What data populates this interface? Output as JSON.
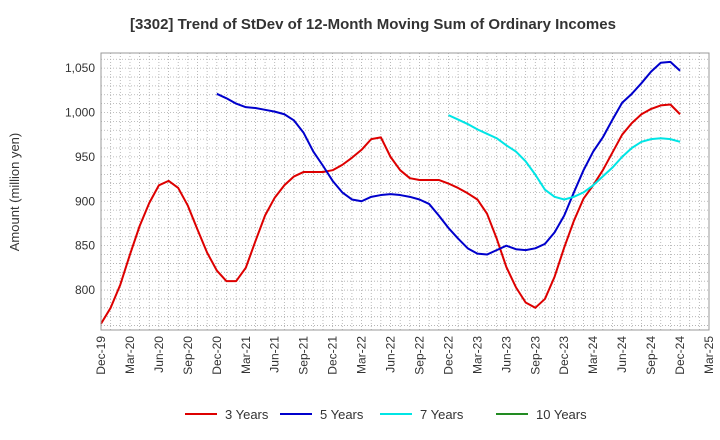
{
  "chart_data": {
    "type": "line",
    "title": "[3302]  Trend of StDev of 12-Month Moving Sum of Ordinary Incomes",
    "xlabel": "",
    "ylabel": "Amount (million yen)",
    "ylim": [
      755,
      1067
    ],
    "yticks": [
      800,
      850,
      900,
      950,
      1000,
      1050
    ],
    "ytick_labels": [
      "800",
      "850",
      "900",
      "950",
      "1,000",
      "1,050"
    ],
    "x_start": "Dec-19",
    "x_end": "Mar-25",
    "x_tick_labels": [
      "Dec-19",
      "Mar-20",
      "Jun-20",
      "Sep-20",
      "Dec-20",
      "Mar-21",
      "Jun-21",
      "Sep-21",
      "Dec-21",
      "Mar-22",
      "Jun-22",
      "Sep-22",
      "Dec-22",
      "Mar-23",
      "Jun-23",
      "Sep-23",
      "Dec-23",
      "Mar-24",
      "Jun-24",
      "Sep-24",
      "Dec-24",
      "Mar-25"
    ],
    "grid": true,
    "legend_position": "bottom",
    "series": [
      {
        "name": "3 Years",
        "color": "#dd0000",
        "start_index": 0,
        "values": [
          762,
          780,
          806,
          840,
          872,
          898,
          918,
          923,
          915,
          895,
          868,
          842,
          822,
          810,
          810,
          825,
          855,
          884,
          904,
          918,
          928,
          933,
          933,
          933,
          935,
          941,
          949,
          958,
          970,
          972,
          950,
          935,
          926,
          924,
          924,
          924,
          920,
          915,
          909,
          902,
          886,
          858,
          826,
          803,
          786,
          780,
          790,
          815,
          848,
          878,
          903,
          918,
          935,
          955,
          975,
          988,
          998,
          1004,
          1008,
          1009,
          998
        ]
      },
      {
        "name": "5 Years",
        "color": "#0000cc",
        "start_index": 12,
        "values": [
          1021,
          1016,
          1010,
          1006,
          1005,
          1003,
          1001,
          998,
          991,
          977,
          956,
          940,
          923,
          910,
          902,
          900,
          905,
          907,
          908,
          907,
          905,
          902,
          897,
          884,
          870,
          858,
          847,
          841,
          840,
          845,
          850,
          846,
          845,
          847,
          852,
          865,
          884,
          910,
          935,
          956,
          972,
          992,
          1011,
          1021,
          1033,
          1046,
          1056,
          1057,
          1047
        ]
      },
      {
        "name": "7 Years",
        "color": "#00e5e5",
        "start_index": 36,
        "values": [
          997,
          992,
          987,
          981,
          976,
          971,
          963,
          956,
          945,
          930,
          913,
          905,
          902,
          905,
          910,
          918,
          928,
          938,
          950,
          960,
          967,
          970,
          971,
          970,
          967
        ]
      },
      {
        "name": "10 Years",
        "color": "#228b22",
        "start_index": 0,
        "values": []
      }
    ]
  }
}
